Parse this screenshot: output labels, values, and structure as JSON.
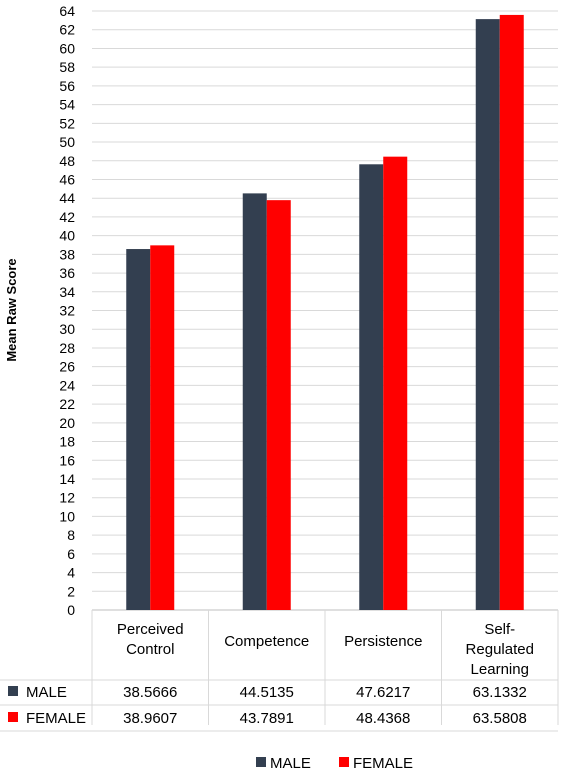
{
  "chart_data": {
    "type": "bar",
    "categories": [
      [
        "Perceived",
        "Control"
      ],
      [
        "Competence"
      ],
      [
        "Persistence"
      ],
      [
        "Self-",
        "Regulated",
        "Learning"
      ]
    ],
    "series": [
      {
        "name": "MALE",
        "color": "#333f50",
        "values": [
          38.5666,
          44.5135,
          47.6217,
          63.1332
        ],
        "value_labels": [
          "38.5666",
          "44.5135",
          "47.6217",
          "63.1332"
        ]
      },
      {
        "name": "FEMALE",
        "color": "#ff0000",
        "values": [
          38.9607,
          43.7891,
          48.4368,
          63.5808
        ],
        "value_labels": [
          "38.9607",
          "43.7891",
          "48.4368",
          "63.5808"
        ]
      }
    ],
    "ylabel": "Mean Raw Score",
    "ylim": [
      0,
      64
    ],
    "ytick_step": 2,
    "grid": true,
    "data_table": true,
    "legend_position": "bottom"
  }
}
